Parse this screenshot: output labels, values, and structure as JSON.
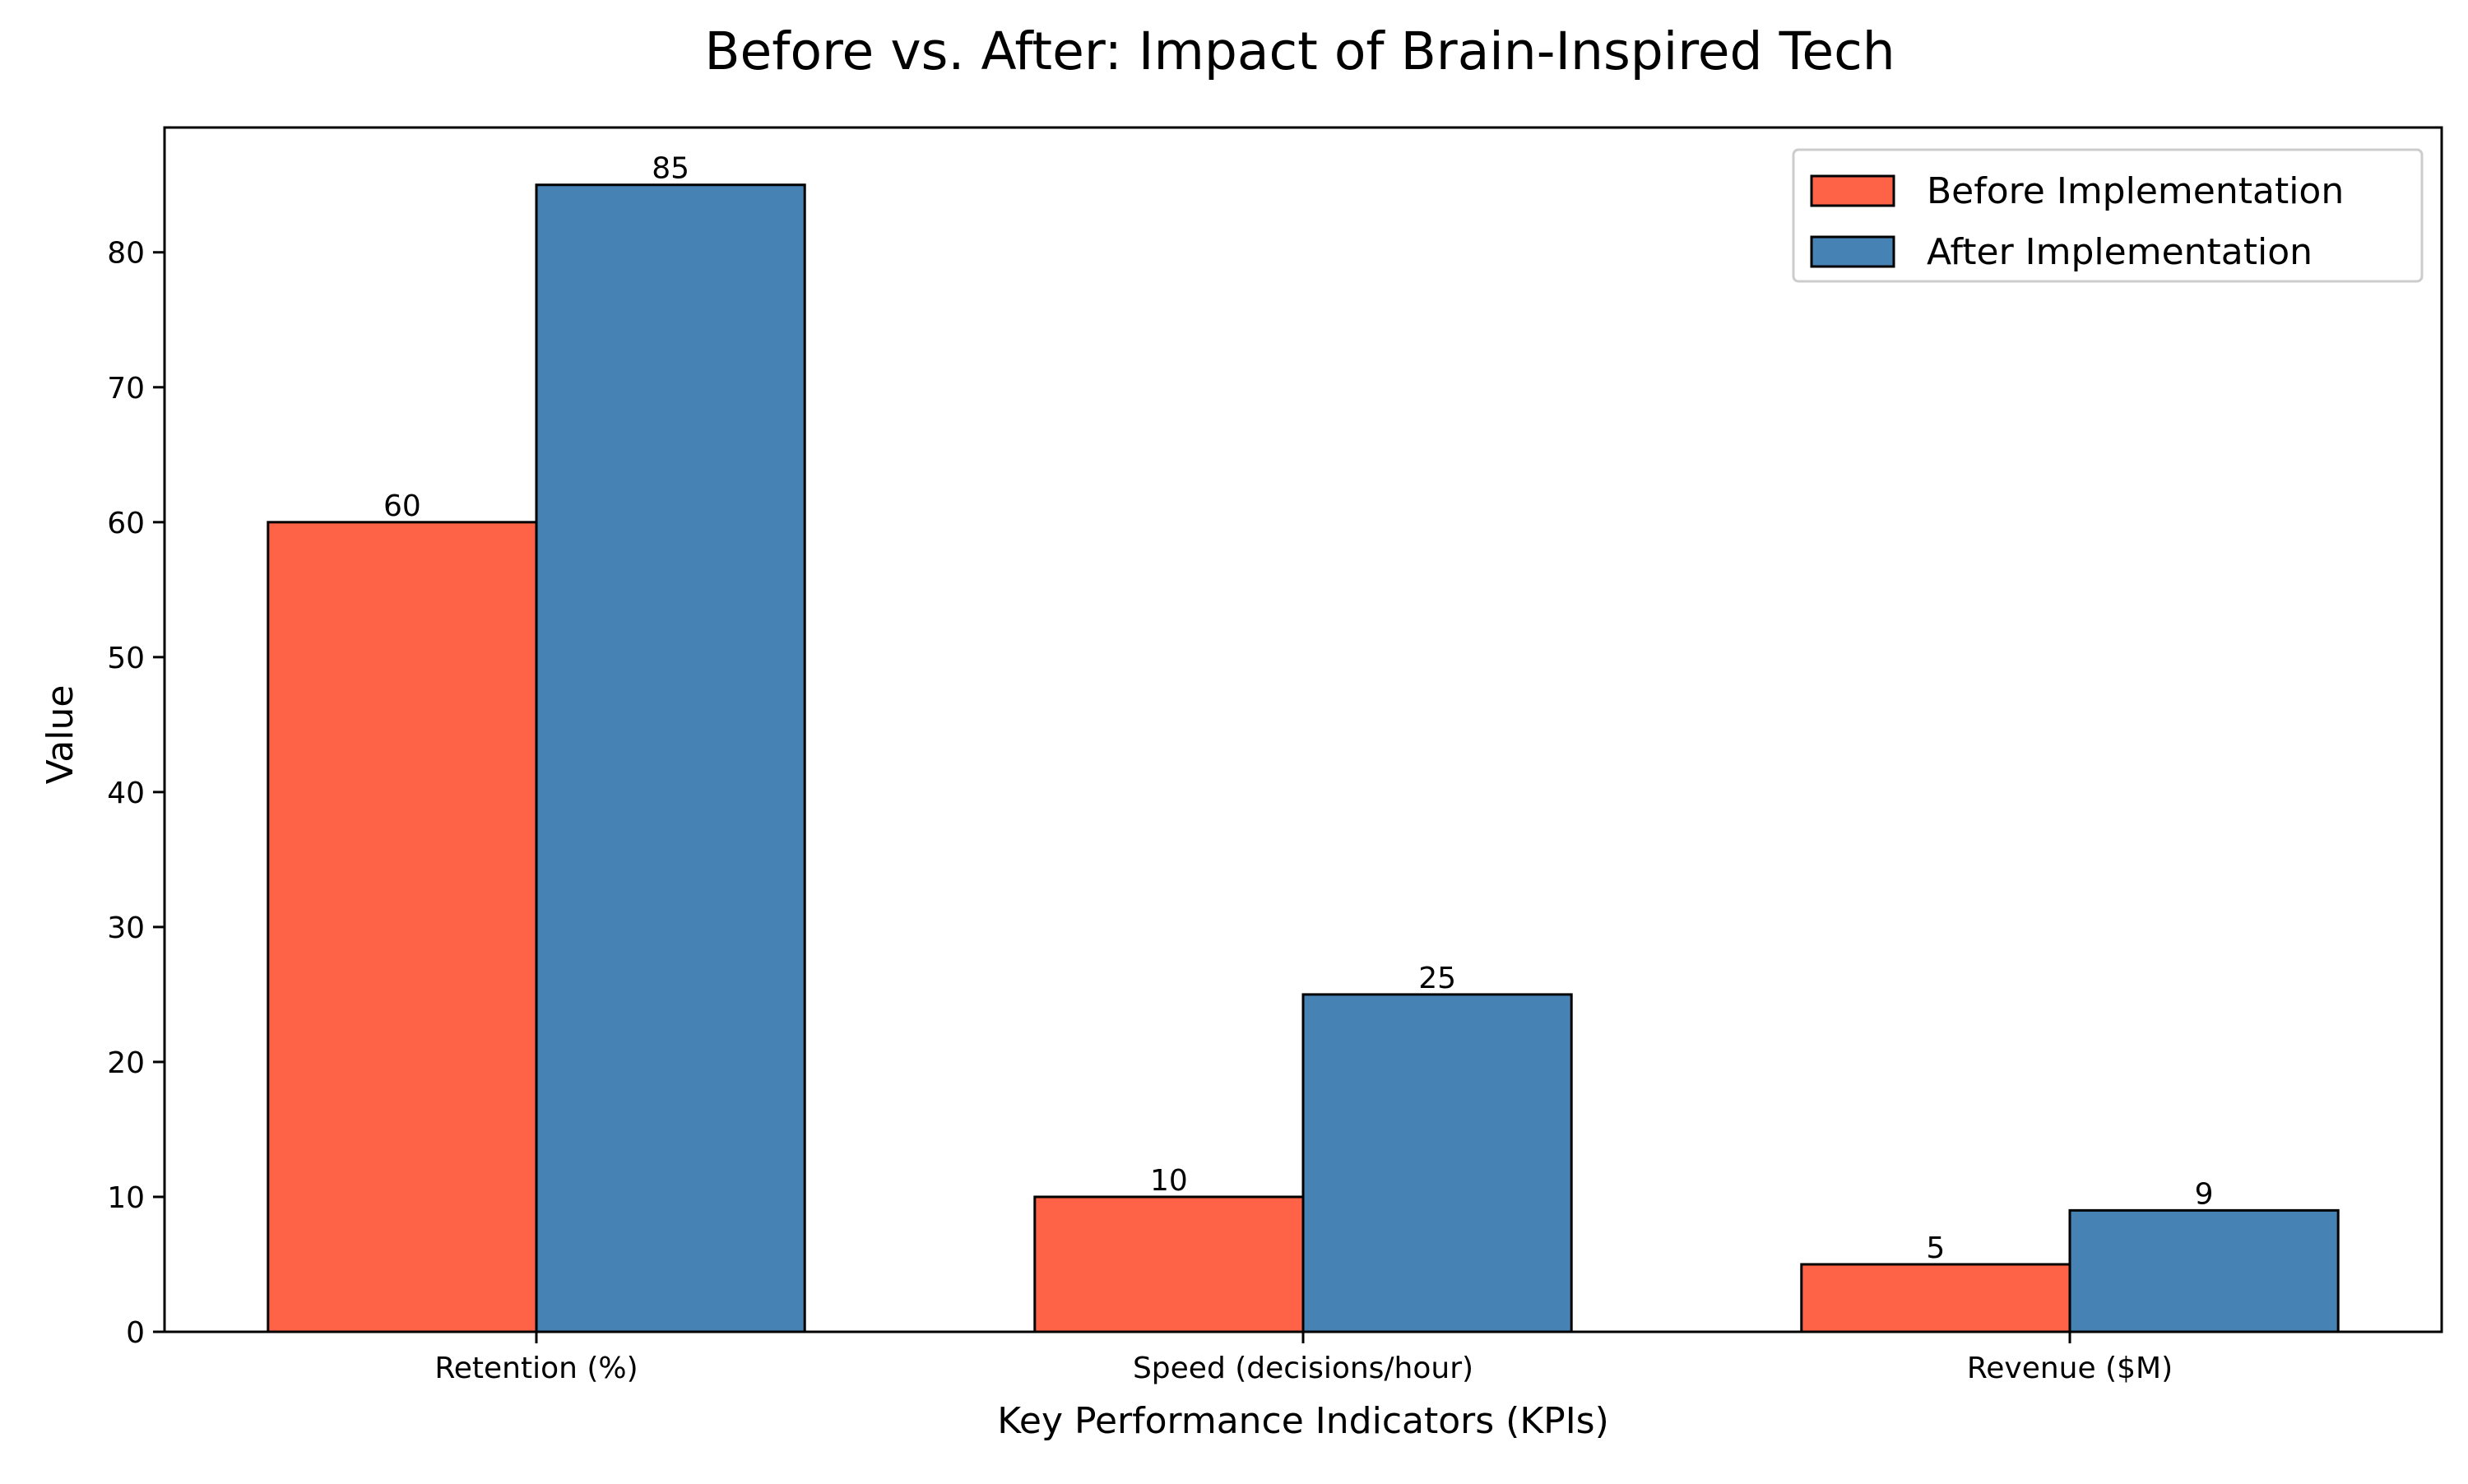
{
  "chart_data": {
    "type": "bar",
    "title": "Before vs. After: Impact of Brain-Inspired Tech",
    "xlabel": "Key Performance Indicators (KPIs)",
    "ylabel": "Value",
    "categories": [
      "Retention (%)",
      "Speed (decisions/hour)",
      "Revenue ($M)"
    ],
    "series": [
      {
        "name": "Before Implementation",
        "values": [
          60,
          10,
          5
        ],
        "color": "#ff6347"
      },
      {
        "name": "After Implementation",
        "values": [
          85,
          25,
          9
        ],
        "color": "#4682b4"
      }
    ],
    "ylim": [
      0,
      89.25
    ],
    "yticks": [
      0,
      10,
      20,
      30,
      40,
      50,
      60,
      70,
      80
    ],
    "grid": false,
    "legend_position": "top-right",
    "data_labels": true
  }
}
